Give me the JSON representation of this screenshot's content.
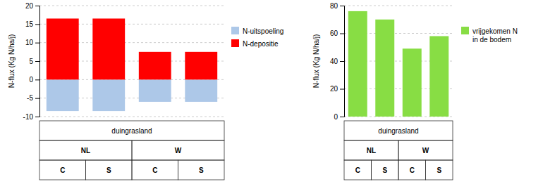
{
  "chart_data": [
    {
      "type": "bar",
      "ylabel": "N-flux (Kg N/ha/j)",
      "categories": [
        "C",
        "S",
        "C",
        "S"
      ],
      "groups": [
        "NL",
        "W"
      ],
      "group_title": "duingrasland",
      "series": [
        {
          "name": "N-uitspoeling",
          "color": "#adc8e8",
          "values": [
            -8.5,
            -8.5,
            -6.0,
            -6.0
          ]
        },
        {
          "name": "N-depositie",
          "color": "#ff0000",
          "values": [
            16.5,
            16.5,
            7.5,
            7.5
          ]
        }
      ],
      "ylim": [
        -10,
        20
      ],
      "yticks": [
        -10,
        -5,
        0,
        5,
        10,
        15,
        20
      ],
      "grid": true,
      "legend": "right"
    },
    {
      "type": "bar",
      "ylabel": "N-flux (Kg N/ha/j)",
      "categories": [
        "C",
        "S",
        "C",
        "S"
      ],
      "groups": [
        "NL",
        "W"
      ],
      "group_title": "duingrasland",
      "series": [
        {
          "name": "vrijgekomen N\nin de bodem",
          "color": "#88dd44",
          "values": [
            76,
            70,
            49,
            58
          ]
        }
      ],
      "ylim": [
        0,
        80
      ],
      "yticks": [
        0,
        20,
        40,
        60,
        80
      ],
      "grid": true,
      "legend": "right"
    }
  ]
}
